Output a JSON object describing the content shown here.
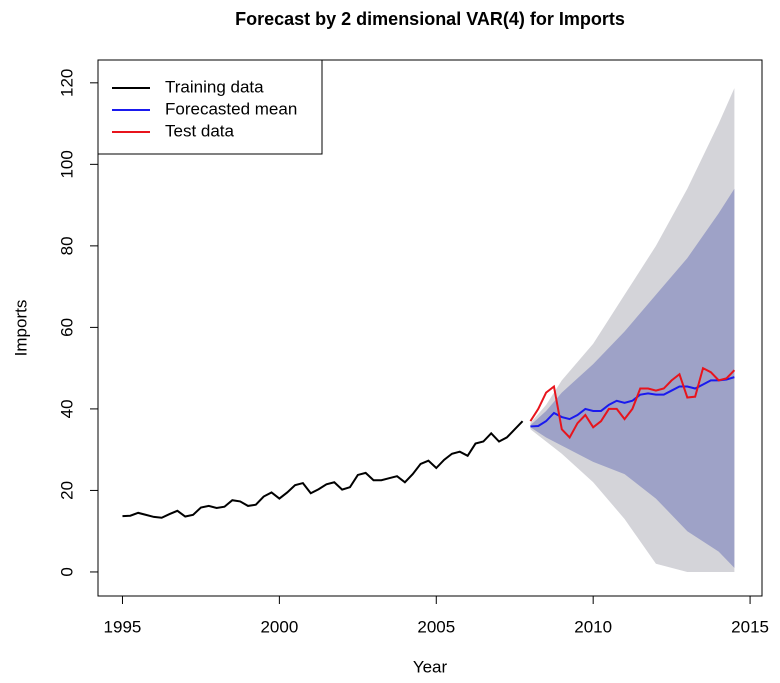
{
  "chart_data": {
    "type": "line",
    "title": "Forecast by 2 dimensional VAR(4) for Imports",
    "x_label": "Year",
    "y_label": "Imports",
    "xlim": [
      1994.22,
      2015.38
    ],
    "ylim": [
      -5.9,
      125.6
    ],
    "xticks": [
      1995,
      2000,
      2005,
      2010,
      2015
    ],
    "yticks": [
      0,
      20,
      40,
      60,
      80,
      100,
      120
    ],
    "legend": "topleft",
    "bands": [
      {
        "color": "#d4d4d9",
        "x": [
          2008,
          2008.5,
          2009,
          2010,
          2011,
          2012,
          2013,
          2014,
          2014.5
        ],
        "lower": [
          35,
          32,
          29,
          22,
          13,
          2,
          0,
          0,
          0
        ],
        "upper": [
          36.5,
          41,
          47,
          56,
          68,
          80,
          94,
          110,
          118.7
        ]
      },
      {
        "color": "#9ea2c7",
        "x": [
          2008,
          2008.5,
          2009,
          2010,
          2011,
          2012,
          2013,
          2014,
          2014.5
        ],
        "lower": [
          35.5,
          33,
          31,
          27,
          24,
          18,
          10,
          5,
          1
        ],
        "upper": [
          36,
          39.5,
          44,
          51,
          59,
          68,
          77,
          88,
          94
        ]
      }
    ],
    "series": [
      {
        "name": "Training data",
        "color": "#000000",
        "x": [
          1995,
          1995.25,
          1995.5,
          1995.75,
          1996,
          1996.25,
          1996.5,
          1996.75,
          1997,
          1997.25,
          1997.5,
          1997.75,
          1998,
          1998.25,
          1998.5,
          1998.75,
          1999,
          1999.25,
          1999.5,
          1999.75,
          2000,
          2000.25,
          2000.5,
          2000.75,
          2001,
          2001.25,
          2001.5,
          2001.75,
          2002,
          2002.25,
          2002.5,
          2002.75,
          2003,
          2003.25,
          2003.5,
          2003.75,
          2004,
          2004.25,
          2004.5,
          2004.75,
          2005,
          2005.25,
          2005.5,
          2005.75,
          2006,
          2006.25,
          2006.5,
          2006.75,
          2007,
          2007.25,
          2007.5,
          2007.75
        ],
        "values": [
          13.7,
          13.8,
          14.5,
          14.0,
          13.5,
          13.3,
          14.2,
          15.0,
          13.6,
          14.0,
          15.8,
          16.2,
          15.7,
          16.0,
          17.6,
          17.3,
          16.2,
          16.5,
          18.5,
          19.5,
          18.0,
          19.5,
          21.3,
          21.8,
          19.3,
          20.3,
          21.5,
          22.0,
          20.2,
          20.8,
          23.8,
          24.3,
          22.5,
          22.5,
          23.0,
          23.5,
          22.0,
          24.0,
          26.5,
          27.3,
          25.5,
          27.5,
          29.0,
          29.5,
          28.5,
          31.5,
          32.0,
          34.0,
          32.0,
          33.0,
          35.0,
          37.0
        ]
      },
      {
        "name": "Forecasted mean",
        "color": "#1a1aee",
        "x": [
          2008,
          2008.25,
          2008.5,
          2008.75,
          2009,
          2009.25,
          2009.5,
          2009.75,
          2010,
          2010.25,
          2010.5,
          2010.75,
          2011,
          2011.25,
          2011.5,
          2011.75,
          2012,
          2012.25,
          2012.5,
          2012.75,
          2013,
          2013.25,
          2013.5,
          2013.75,
          2014,
          2014.25,
          2014.5
        ],
        "values": [
          35.7,
          35.8,
          37.0,
          39.0,
          38.0,
          37.5,
          38.5,
          40.0,
          39.5,
          39.5,
          41.0,
          42.0,
          41.5,
          42.0,
          43.5,
          43.8,
          43.5,
          43.5,
          44.5,
          45.5,
          45.5,
          45.0,
          46.0,
          47.0,
          47.0,
          47.2,
          47.8
        ]
      },
      {
        "name": "Test data",
        "color": "#e8141c",
        "x": [
          2008,
          2008.25,
          2008.5,
          2008.75,
          2009,
          2009.25,
          2009.5,
          2009.75,
          2010,
          2010.25,
          2010.5,
          2010.75,
          2011,
          2011.25,
          2011.5,
          2011.75,
          2012,
          2012.25,
          2012.5,
          2012.75,
          2013,
          2013.25,
          2013.5,
          2013.75,
          2014,
          2014.25,
          2014.5
        ],
        "values": [
          37.0,
          40.0,
          44.0,
          45.5,
          35.0,
          33.0,
          36.5,
          38.5,
          35.5,
          37.0,
          40.0,
          40.0,
          37.5,
          40.0,
          45.0,
          45.0,
          44.5,
          45.0,
          47.0,
          48.5,
          42.8,
          43.0,
          50.0,
          49.0,
          47.0,
          47.5,
          49.5
        ]
      }
    ]
  }
}
